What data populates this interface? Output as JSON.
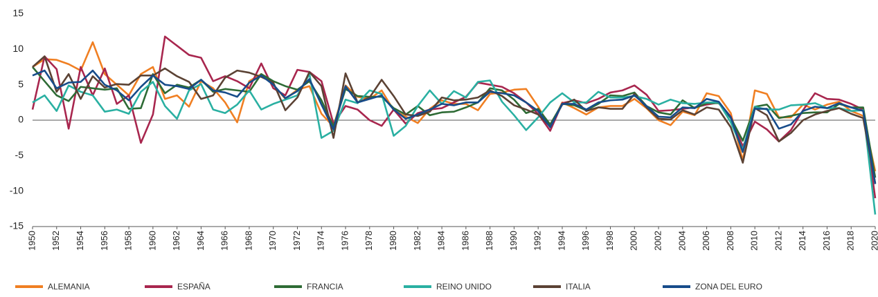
{
  "chart_data": {
    "type": "line",
    "x": [
      1950,
      1951,
      1952,
      1953,
      1954,
      1955,
      1956,
      1957,
      1958,
      1959,
      1960,
      1961,
      1962,
      1963,
      1964,
      1965,
      1966,
      1967,
      1968,
      1969,
      1970,
      1971,
      1972,
      1973,
      1974,
      1975,
      1976,
      1977,
      1978,
      1979,
      1980,
      1981,
      1982,
      1983,
      1984,
      1985,
      1986,
      1987,
      1988,
      1989,
      1990,
      1991,
      1992,
      1993,
      1994,
      1995,
      1996,
      1997,
      1998,
      1999,
      2000,
      2001,
      2002,
      2003,
      2004,
      2005,
      2006,
      2007,
      2008,
      2009,
      2010,
      2011,
      2012,
      2013,
      2014,
      2015,
      2016,
      2017,
      2018,
      2019,
      2020
    ],
    "xlim": [
      1950,
      2020
    ],
    "xticks": [
      1950,
      1952,
      1954,
      1956,
      1958,
      1960,
      1962,
      1964,
      1966,
      1968,
      1970,
      1972,
      1974,
      1976,
      1978,
      1980,
      1982,
      1984,
      1986,
      1988,
      1990,
      1992,
      1994,
      1996,
      1998,
      2000,
      2002,
      2004,
      2006,
      2008,
      2010,
      2012,
      2014,
      2016,
      2018,
      2020
    ],
    "ylim": [
      -15,
      15
    ],
    "yticks": [
      -15,
      -10,
      -5,
      0,
      5,
      10,
      15
    ],
    "grid": false,
    "legend": "bottom",
    "series": [
      {
        "name": "ALEMANIA",
        "color": "#f07f22",
        "values": [
          7.5,
          8.6,
          8.5,
          7.9,
          7.0,
          11.0,
          6.5,
          5.0,
          3.5,
          6.5,
          7.5,
          3.0,
          3.5,
          1.9,
          5.5,
          4.5,
          2.5,
          -0.3,
          5.5,
          6.5,
          5.0,
          3.0,
          4.3,
          4.8,
          0.9,
          -0.9,
          4.9,
          3.3,
          3.0,
          4.2,
          1.4,
          0.5,
          -0.4,
          1.6,
          2.8,
          2.3,
          2.3,
          1.4,
          3.7,
          3.9,
          4.3,
          4.4,
          1.9,
          -1.0,
          2.5,
          1.7,
          0.8,
          1.8,
          2.0,
          2.0,
          3.0,
          1.7,
          0.0,
          -0.7,
          1.2,
          0.7,
          3.8,
          3.4,
          1.0,
          -5.7,
          4.2,
          3.7,
          0.4,
          0.4,
          2.2,
          1.5,
          2.2,
          2.6,
          1.3,
          0.6,
          -7.2
        ]
      },
      {
        "name": "ESPAÑA",
        "color": "#a8264e",
        "values": [
          1.5,
          9.0,
          7.2,
          -1.2,
          7.5,
          3.5,
          7.3,
          2.3,
          3.5,
          -3.2,
          0.8,
          11.8,
          10.5,
          9.2,
          8.8,
          5.5,
          6.2,
          5.5,
          4.5,
          8.0,
          4.5,
          3.5,
          7.1,
          6.8,
          5.5,
          -0.5,
          2.0,
          1.5,
          0.0,
          -0.8,
          1.5,
          -0.5,
          1.0,
          1.5,
          1.7,
          2.5,
          3.3,
          5.3,
          5.0,
          4.7,
          3.8,
          2.5,
          0.9,
          -1.5,
          2.4,
          2.8,
          2.4,
          3.0,
          3.9,
          4.2,
          4.9,
          3.6,
          1.3,
          1.4,
          1.6,
          1.8,
          2.2,
          2.5,
          0.5,
          -3.7,
          -0.2,
          -1.3,
          -3.0,
          -1.4,
          1.4,
          3.8,
          3.0,
          2.9,
          2.3,
          1.5,
          -11.0
        ]
      },
      {
        "name": "FRANCIA",
        "color": "#2e6b35",
        "values": [
          7.5,
          5.5,
          3.5,
          2.7,
          4.7,
          4.5,
          4.3,
          4.5,
          1.6,
          1.7,
          6.5,
          3.8,
          5.0,
          4.6,
          5.7,
          4.0,
          4.4,
          4.2,
          4.0,
          6.5,
          5.5,
          4.8,
          4.3,
          5.5,
          2.8,
          -0.9,
          4.4,
          3.4,
          3.3,
          3.3,
          1.7,
          0.8,
          2.0,
          0.7,
          1.1,
          1.2,
          1.8,
          2.5,
          4.5,
          4.2,
          2.9,
          1.0,
          1.6,
          -0.6,
          2.3,
          2.1,
          1.4,
          2.3,
          3.5,
          3.4,
          3.9,
          2.0,
          1.1,
          0.8,
          2.8,
          1.7,
          2.4,
          2.4,
          0.3,
          -2.9,
          1.9,
          2.2,
          0.3,
          0.6,
          1.0,
          1.1,
          1.1,
          2.3,
          1.8,
          1.8,
          -8.1
        ]
      },
      {
        "name": "REINO UNIDO",
        "color": "#2ab0a2",
        "values": [
          2.5,
          3.5,
          1.3,
          4.9,
          4.0,
          3.5,
          1.2,
          1.5,
          0.9,
          4.0,
          5.4,
          2.0,
          0.2,
          4.2,
          5.1,
          1.5,
          1.0,
          2.2,
          4.2,
          1.5,
          2.3,
          2.9,
          3.5,
          6.5,
          -2.5,
          -1.5,
          2.9,
          2.4,
          4.2,
          3.7,
          -2.2,
          -0.8,
          2.0,
          4.2,
          2.3,
          4.1,
          3.2,
          5.4,
          5.6,
          2.6,
          0.7,
          -1.4,
          0.4,
          2.5,
          3.8,
          2.5,
          2.5,
          4.0,
          3.2,
          3.2,
          3.4,
          3.0,
          2.2,
          2.9,
          2.4,
          2.3,
          2.5,
          2.5,
          -0.3,
          -4.2,
          1.9,
          1.5,
          1.5,
          2.1,
          2.2,
          2.4,
          1.7,
          1.7,
          1.3,
          1.4,
          -13.3
        ]
      },
      {
        "name": "ITALIA",
        "color": "#5b4234",
        "values": [
          7.5,
          9.0,
          4.0,
          6.5,
          3.0,
          6.2,
          4.6,
          5.1,
          5.0,
          6.3,
          6.3,
          7.3,
          6.2,
          5.4,
          3.0,
          3.5,
          6.0,
          7.0,
          6.7,
          6.1,
          5.3,
          1.4,
          3.2,
          6.8,
          4.8,
          -2.5,
          6.6,
          2.5,
          3.2,
          5.7,
          3.4,
          0.8,
          0.6,
          1.2,
          3.2,
          2.8,
          2.9,
          3.2,
          4.2,
          3.4,
          2.1,
          1.5,
          0.8,
          -0.9,
          2.2,
          2.9,
          1.3,
          1.8,
          1.6,
          1.6,
          3.7,
          1.8,
          0.2,
          0.1,
          1.4,
          0.8,
          1.8,
          1.5,
          -1.0,
          -6.0,
          1.7,
          0.7,
          -3.0,
          -1.8,
          0.0,
          0.8,
          1.3,
          1.7,
          0.9,
          0.3,
          -8.9
        ]
      },
      {
        "name": "ZONA DEL EURO",
        "color": "#174c8a",
        "values": [
          6.3,
          7.0,
          4.5,
          5.3,
          5.4,
          7.0,
          5.0,
          4.2,
          2.8,
          4.7,
          6.3,
          5.0,
          4.8,
          4.4,
          5.7,
          4.2,
          3.9,
          3.3,
          5.3,
          6.3,
          5.0,
          3.1,
          4.1,
          5.8,
          2.2,
          -1.3,
          4.8,
          2.5,
          3.0,
          3.5,
          1.5,
          0.2,
          0.8,
          1.5,
          2.3,
          2.1,
          2.5,
          2.5,
          4.0,
          3.8,
          3.5,
          2.5,
          1.3,
          -1.0,
          2.3,
          2.3,
          1.5,
          2.5,
          2.8,
          2.9,
          3.5,
          2.0,
          0.5,
          0.4,
          1.8,
          1.7,
          3.0,
          2.6,
          0.4,
          -4.5,
          1.6,
          1.6,
          -1.2,
          -0.6,
          1.3,
          1.9,
          1.7,
          2.4,
          1.8,
          1.3,
          -9.0
        ]
      }
    ]
  }
}
